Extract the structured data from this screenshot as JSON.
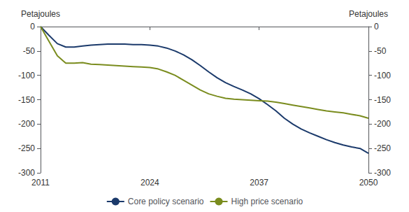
{
  "chart_data": {
    "type": "line",
    "ylabel": "Petajoules",
    "y2label": "Petajoules",
    "x": [
      2011,
      2012,
      2013,
      2014,
      2015,
      2016,
      2017,
      2018,
      2019,
      2020,
      2021,
      2022,
      2023,
      2024,
      2025,
      2026,
      2027,
      2028,
      2029,
      2030,
      2031,
      2032,
      2033,
      2034,
      2035,
      2036,
      2037,
      2038,
      2039,
      2040,
      2041,
      2042,
      2043,
      2044,
      2045,
      2046,
      2047,
      2048,
      2049,
      2050
    ],
    "series": [
      {
        "name": "Core policy scenario",
        "color": "#1b3a6b",
        "values": [
          0,
          -18,
          -35,
          -42,
          -42,
          -40,
          -38,
          -37,
          -36,
          -36,
          -36,
          -37,
          -37,
          -38,
          -40,
          -44,
          -50,
          -58,
          -68,
          -80,
          -93,
          -105,
          -115,
          -123,
          -130,
          -138,
          -148,
          -160,
          -173,
          -188,
          -200,
          -210,
          -218,
          -225,
          -232,
          -238,
          -243,
          -247,
          -250,
          -260
        ]
      },
      {
        "name": "High price scenario",
        "color": "#7a8c1e",
        "values": [
          0,
          -30,
          -60,
          -75,
          -75,
          -74,
          -77,
          -78,
          -79,
          -80,
          -81,
          -82,
          -83,
          -84,
          -87,
          -93,
          -100,
          -110,
          -120,
          -130,
          -138,
          -143,
          -147,
          -149,
          -150,
          -151,
          -152,
          -153,
          -155,
          -158,
          -161,
          -164,
          -167,
          -170,
          -173,
          -175,
          -177,
          -180,
          -183,
          -188
        ]
      }
    ],
    "xlim": [
      2011,
      2050
    ],
    "xticks": [
      2011,
      2024,
      2037,
      2050
    ],
    "ylim": [
      -300,
      0
    ],
    "yticks": [
      0,
      -50,
      -100,
      -150,
      -200,
      -250,
      -300
    ],
    "y2lim": [
      -300,
      0
    ],
    "y2ticks": [
      0,
      -50,
      -100,
      -150,
      -200,
      -250,
      -300
    ],
    "grid": false,
    "legend": "bottom"
  }
}
